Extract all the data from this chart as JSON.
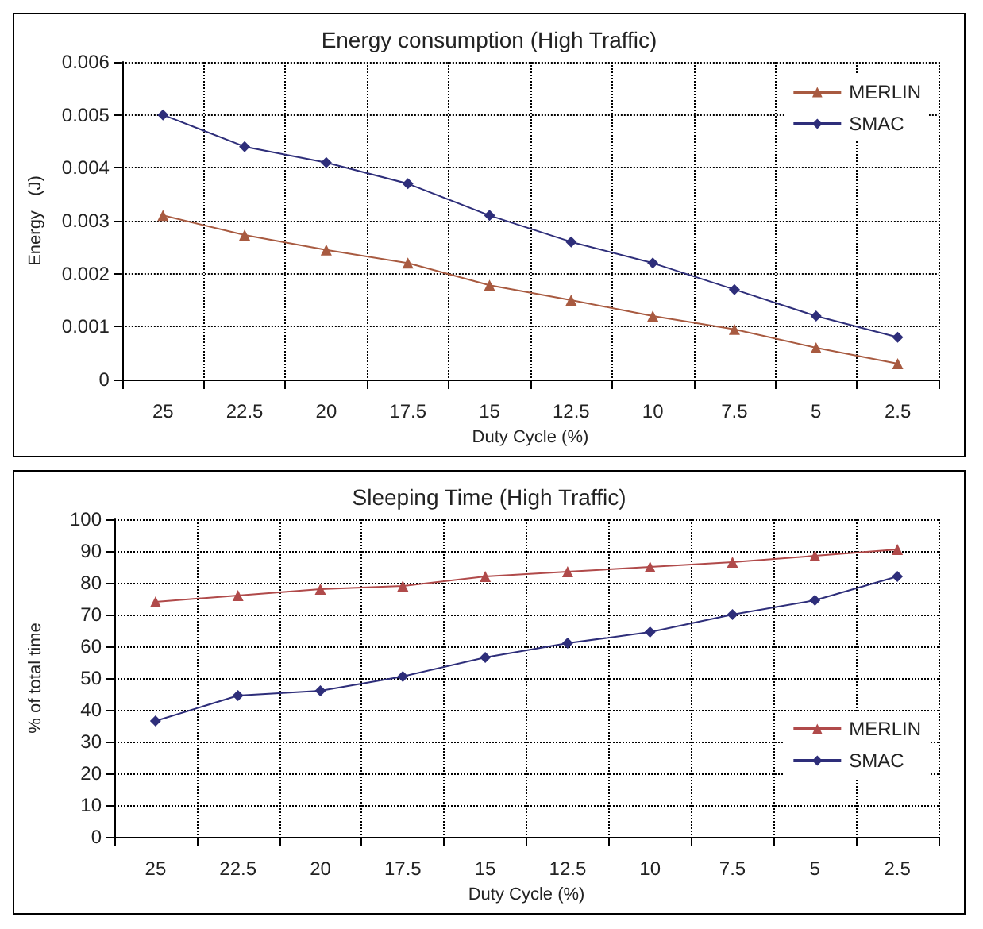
{
  "chart_data": [
    {
      "type": "line",
      "title": "Energy consumption (High Traffic)",
      "xlabel": "Duty Cycle (%)",
      "ylabel": "Energy   (J)",
      "categories": [
        "25",
        "22.5",
        "20",
        "17.5",
        "15",
        "12.5",
        "10",
        "7.5",
        "5",
        "2.5"
      ],
      "series": [
        {
          "name": "MERLIN",
          "color": "#a85a40",
          "marker": "triangle",
          "values": [
            0.0031,
            0.00273,
            0.00245,
            0.0022,
            0.00178,
            0.0015,
            0.0012,
            0.00095,
            0.0006,
            0.0003
          ]
        },
        {
          "name": "SMAC",
          "color": "#2e2e7a",
          "marker": "diamond",
          "values": [
            0.005,
            0.0044,
            0.0041,
            0.0037,
            0.0031,
            0.0026,
            0.0022,
            0.0017,
            0.0012,
            0.0008
          ]
        }
      ],
      "ylim": [
        0,
        0.006
      ],
      "yticks": [
        0,
        0.001,
        0.002,
        0.003,
        0.004,
        0.005,
        0.006
      ],
      "grid": true,
      "legend": "top right"
    },
    {
      "type": "line",
      "title": "Sleeping Time (High Traffic)",
      "xlabel": "Duty Cycle (%)",
      "ylabel": "% of total time",
      "categories": [
        "25",
        "22.5",
        "20",
        "17.5",
        "15",
        "12.5",
        "10",
        "7.5",
        "5",
        "2.5"
      ],
      "series": [
        {
          "name": "MERLIN",
          "color": "#b04a4a",
          "marker": "triangle",
          "values": [
            74,
            76,
            78,
            79,
            82,
            83.5,
            85,
            86.5,
            88.5,
            90.5
          ]
        },
        {
          "name": "SMAC",
          "color": "#2e2e7a",
          "marker": "diamond",
          "values": [
            36.5,
            44.5,
            46,
            50.5,
            56.5,
            61,
            64.5,
            70,
            74.5,
            82
          ]
        }
      ],
      "ylim": [
        0,
        100
      ],
      "yticks": [
        0,
        10,
        20,
        30,
        40,
        50,
        60,
        70,
        80,
        90,
        100
      ],
      "grid": true,
      "legend": "bottom right"
    }
  ]
}
